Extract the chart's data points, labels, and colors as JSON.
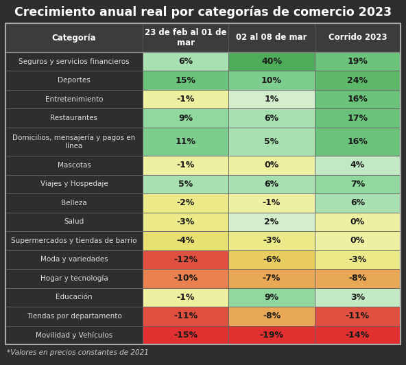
{
  "title": "Crecimiento anual real por categorías de comercio 2023",
  "footnote": "*Valores en precios constantes de 2021",
  "col_headers": [
    "Categoría",
    "23 de feb al 01 de\nmar",
    "02 al 08 de mar",
    "Corrido 2023"
  ],
  "categories": [
    "Seguros y servicios financieros",
    "Deportes",
    "Entretenimiento",
    "Restaurantes",
    "Domicilios, mensajería y pagos en\nlínea",
    "Mascotas",
    "Viajes y Hospedaje",
    "Belleza",
    "Salud",
    "Supermercados y tiendas de barrio",
    "Moda y variedades",
    "Hogar y tecnología",
    "Educación",
    "Tiendas por departamento",
    "Movilidad y Vehículos"
  ],
  "col1_values": [
    6,
    15,
    -1,
    9,
    11,
    -1,
    5,
    -2,
    -3,
    -4,
    -12,
    -10,
    -1,
    -11,
    -15
  ],
  "col2_values": [
    40,
    10,
    1,
    6,
    5,
    0,
    6,
    -1,
    2,
    -3,
    -6,
    -7,
    9,
    -8,
    -19
  ],
  "col3_values": [
    19,
    24,
    16,
    17,
    16,
    4,
    7,
    6,
    0,
    0,
    -3,
    -8,
    3,
    -11,
    -14
  ],
  "col1_labels": [
    "6%",
    "15%",
    "-1%",
    "9%",
    "11%",
    "-1%",
    "5%",
    "-2%",
    "-3%",
    "-4%",
    "-12%",
    "-10%",
    "-1%",
    "-11%",
    "-15%"
  ],
  "col2_labels": [
    "40%",
    "10%",
    "1%",
    "6%",
    "5%",
    "0%",
    "6%",
    "-1%",
    "2%",
    "-3%",
    "-6%",
    "-7%",
    "9%",
    "-8%",
    "-19%"
  ],
  "col3_labels": [
    "19%",
    "24%",
    "16%",
    "17%",
    "16%",
    "4%",
    "7%",
    "6%",
    "0%",
    "0%",
    "-3%",
    "-8%",
    "3%",
    "-11%",
    "-14%"
  ],
  "bg_color": "#2e2e2e",
  "cat_col_bg": "#2e2e2e",
  "header_bg": "#3a3a3a",
  "title_color": "#ffffff",
  "border_color": "#888888",
  "footnote_color": "#cccccc",
  "cell_text_color": "#1a1a1a",
  "cat_text_color": "#dddddd",
  "header_text_color": "#ffffff"
}
